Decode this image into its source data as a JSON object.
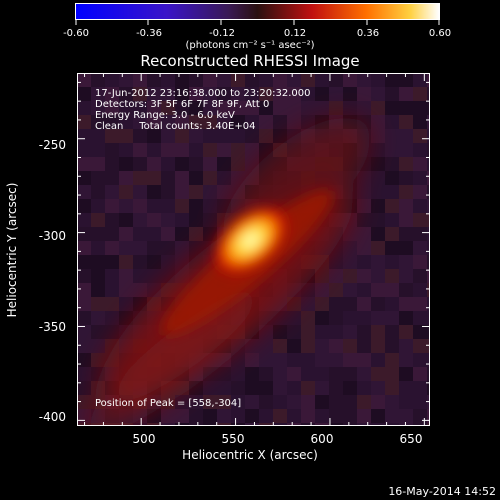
{
  "colorbar": {
    "ticks": [
      "-0.60",
      "-0.36",
      "-0.12",
      "0.12",
      "0.36",
      "0.60"
    ],
    "unit_label": "(photons cm⁻² s⁻¹ asec⁻²)"
  },
  "title": "Reconstructed RHESSI Image",
  "info": {
    "time": "17-Jun-2012 23:16:38.000 to 23:20:32.000",
    "detectors": "Detectors: 3F 5F 6F 7F 8F 9F, Att 0",
    "energy": "Energy Range: 3.0 - 6.0 keV",
    "clean": "Clean     Total counts: 3.40E+04",
    "peak": "Position of Peak = [558,-304]"
  },
  "footer": "16-May-2014 14:52",
  "chart_data": {
    "type": "heatmap",
    "title": "Reconstructed RHESSI Image",
    "xlabel": "Heliocentric X (arcsec)",
    "ylabel": "Heliocentric Y (arcsec)",
    "xlim": [
      466,
      653
    ],
    "ylim": [
      -403,
      -215
    ],
    "xticks": [
      500,
      550,
      600,
      650
    ],
    "yticks": [
      -250,
      -300,
      -350,
      -400
    ],
    "colorbar_range": [
      -0.6,
      0.6
    ],
    "colormap": "hot",
    "peak_position": [
      558,
      -304
    ],
    "peak_value": 0.6,
    "grid": false
  }
}
